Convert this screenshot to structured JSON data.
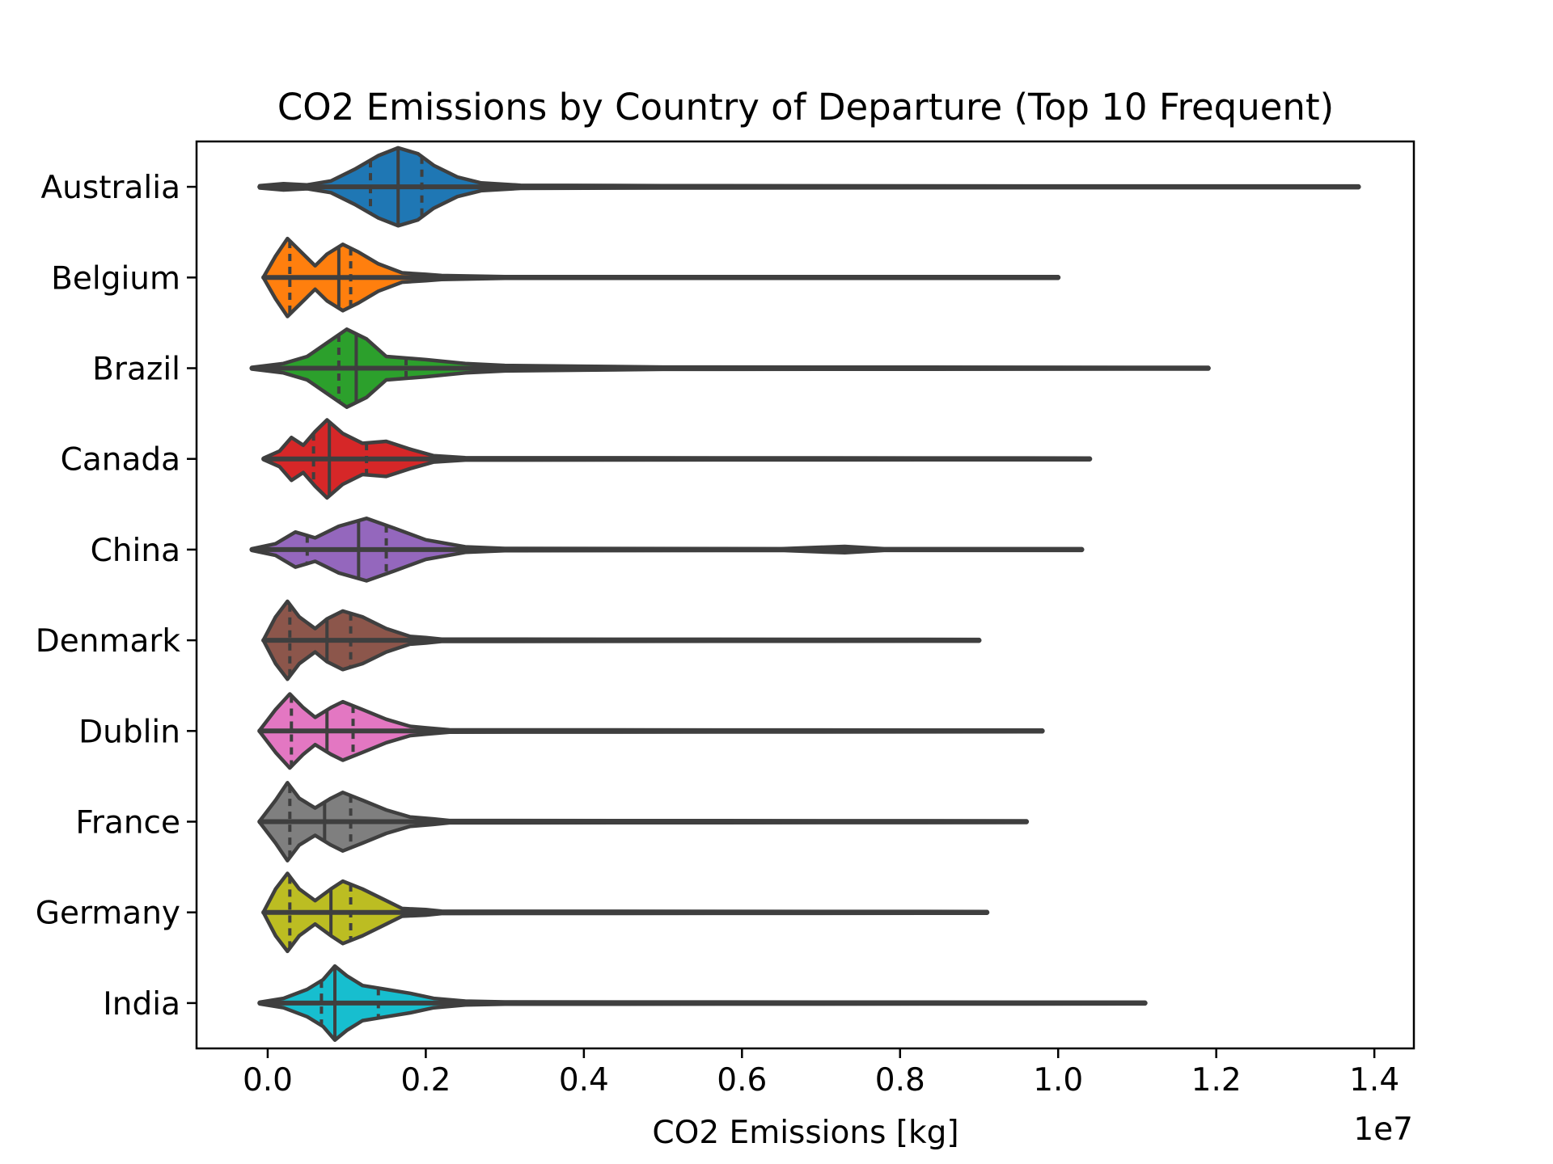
{
  "chart_data": {
    "type": "violin",
    "orientation": "horizontal",
    "title": "CO2 Emissions by Country of Departure (Top 10 Frequent)",
    "xlabel": "CO2 Emissions [kg]",
    "ylabel": "",
    "x_offset_label": "1e7",
    "x_scale_factor": 10000000,
    "xlim": [
      -0.09,
      1.45
    ],
    "x_ticks": [
      0.0,
      0.2,
      0.4,
      0.6,
      0.8,
      1.0,
      1.2,
      1.4
    ],
    "x_tick_labels": [
      "0.0",
      "0.2",
      "0.4",
      "0.6",
      "0.8",
      "1.0",
      "1.2",
      "1.4"
    ],
    "inner": "quartile",
    "categories": [
      "Australia",
      "Belgium",
      "Brazil",
      "Canada",
      "China",
      "Denmark",
      "Dublin",
      "France",
      "Germany",
      "India"
    ],
    "series": [
      {
        "name": "Australia",
        "color": "#1f77b4",
        "min": -0.01,
        "max": 1.38,
        "q1": 0.13,
        "median": 0.165,
        "q3": 0.195,
        "density": [
          [
            -0.01,
            0.03
          ],
          [
            0.02,
            0.08
          ],
          [
            0.05,
            0.05
          ],
          [
            0.08,
            0.15
          ],
          [
            0.11,
            0.45
          ],
          [
            0.14,
            0.8
          ],
          [
            0.165,
            1.0
          ],
          [
            0.19,
            0.85
          ],
          [
            0.21,
            0.55
          ],
          [
            0.24,
            0.25
          ],
          [
            0.27,
            0.1
          ],
          [
            0.32,
            0.04
          ],
          [
            0.5,
            0.03
          ],
          [
            1.0,
            0.02
          ],
          [
            1.38,
            0.02
          ]
        ]
      },
      {
        "name": "Belgium",
        "color": "#ff7f0e",
        "min": -0.005,
        "max": 1.0,
        "q1": 0.028,
        "median": 0.09,
        "q3": 0.105,
        "density": [
          [
            -0.005,
            0.02
          ],
          [
            0.01,
            0.55
          ],
          [
            0.025,
            1.0
          ],
          [
            0.04,
            0.7
          ],
          [
            0.06,
            0.3
          ],
          [
            0.075,
            0.6
          ],
          [
            0.095,
            0.85
          ],
          [
            0.115,
            0.65
          ],
          [
            0.14,
            0.35
          ],
          [
            0.17,
            0.12
          ],
          [
            0.2,
            0.08
          ],
          [
            0.22,
            0.05
          ],
          [
            0.3,
            0.02
          ],
          [
            1.0,
            0.02
          ]
        ]
      },
      {
        "name": "Brazil",
        "color": "#2ca02c",
        "min": -0.02,
        "max": 1.19,
        "q1": 0.09,
        "median": 0.112,
        "q3": 0.175,
        "density": [
          [
            -0.02,
            0.02
          ],
          [
            0.02,
            0.12
          ],
          [
            0.05,
            0.3
          ],
          [
            0.075,
            0.65
          ],
          [
            0.1,
            1.0
          ],
          [
            0.125,
            0.75
          ],
          [
            0.15,
            0.3
          ],
          [
            0.2,
            0.22
          ],
          [
            0.25,
            0.12
          ],
          [
            0.3,
            0.07
          ],
          [
            0.4,
            0.05
          ],
          [
            0.5,
            0.03
          ],
          [
            1.19,
            0.02
          ]
        ]
      },
      {
        "name": "Canada",
        "color": "#d62728",
        "min": -0.005,
        "max": 1.04,
        "q1": 0.058,
        "median": 0.078,
        "q3": 0.125,
        "density": [
          [
            -0.005,
            0.02
          ],
          [
            0.015,
            0.2
          ],
          [
            0.03,
            0.55
          ],
          [
            0.045,
            0.35
          ],
          [
            0.06,
            0.7
          ],
          [
            0.075,
            1.0
          ],
          [
            0.095,
            0.65
          ],
          [
            0.12,
            0.4
          ],
          [
            0.15,
            0.45
          ],
          [
            0.18,
            0.25
          ],
          [
            0.21,
            0.08
          ],
          [
            0.25,
            0.03
          ],
          [
            1.04,
            0.02
          ]
        ]
      },
      {
        "name": "China",
        "color": "#9467bd",
        "min": -0.02,
        "max": 1.03,
        "q1": 0.05,
        "median": 0.115,
        "q3": 0.15,
        "density": [
          [
            -0.02,
            0.02
          ],
          [
            0.01,
            0.15
          ],
          [
            0.035,
            0.45
          ],
          [
            0.06,
            0.3
          ],
          [
            0.09,
            0.6
          ],
          [
            0.125,
            0.8
          ],
          [
            0.16,
            0.55
          ],
          [
            0.2,
            0.25
          ],
          [
            0.25,
            0.07
          ],
          [
            0.3,
            0.03
          ],
          [
            0.65,
            0.02
          ],
          [
            0.7,
            0.06
          ],
          [
            0.73,
            0.08
          ],
          [
            0.78,
            0.02
          ],
          [
            1.03,
            0.02
          ]
        ]
      },
      {
        "name": "Denmark",
        "color": "#8c564b",
        "min": -0.005,
        "max": 0.9,
        "q1": 0.028,
        "median": 0.075,
        "q3": 0.105,
        "density": [
          [
            -0.005,
            0.02
          ],
          [
            0.01,
            0.6
          ],
          [
            0.025,
            1.0
          ],
          [
            0.04,
            0.6
          ],
          [
            0.06,
            0.3
          ],
          [
            0.075,
            0.55
          ],
          [
            0.095,
            0.75
          ],
          [
            0.12,
            0.6
          ],
          [
            0.15,
            0.3
          ],
          [
            0.18,
            0.1
          ],
          [
            0.2,
            0.07
          ],
          [
            0.22,
            0.03
          ],
          [
            0.9,
            0.02
          ]
        ]
      },
      {
        "name": "Dublin",
        "color": "#e377c2",
        "min": -0.01,
        "max": 0.98,
        "q1": 0.03,
        "median": 0.075,
        "q3": 0.108,
        "density": [
          [
            -0.01,
            0.02
          ],
          [
            0.01,
            0.55
          ],
          [
            0.028,
            0.95
          ],
          [
            0.045,
            0.6
          ],
          [
            0.06,
            0.35
          ],
          [
            0.08,
            0.6
          ],
          [
            0.095,
            0.75
          ],
          [
            0.12,
            0.55
          ],
          [
            0.15,
            0.3
          ],
          [
            0.18,
            0.12
          ],
          [
            0.2,
            0.08
          ],
          [
            0.23,
            0.03
          ],
          [
            0.98,
            0.02
          ]
        ]
      },
      {
        "name": "France",
        "color": "#7f7f7f",
        "min": -0.01,
        "max": 0.96,
        "q1": 0.028,
        "median": 0.072,
        "q3": 0.105,
        "density": [
          [
            -0.01,
            0.02
          ],
          [
            0.01,
            0.55
          ],
          [
            0.025,
            1.0
          ],
          [
            0.04,
            0.6
          ],
          [
            0.06,
            0.35
          ],
          [
            0.08,
            0.6
          ],
          [
            0.095,
            0.75
          ],
          [
            0.12,
            0.55
          ],
          [
            0.15,
            0.3
          ],
          [
            0.18,
            0.12
          ],
          [
            0.21,
            0.07
          ],
          [
            0.23,
            0.03
          ],
          [
            0.96,
            0.02
          ]
        ]
      },
      {
        "name": "Germany",
        "color": "#bcbd22",
        "min": -0.005,
        "max": 0.91,
        "q1": 0.028,
        "median": 0.08,
        "q3": 0.105,
        "density": [
          [
            -0.005,
            0.02
          ],
          [
            0.01,
            0.6
          ],
          [
            0.025,
            1.0
          ],
          [
            0.04,
            0.6
          ],
          [
            0.06,
            0.3
          ],
          [
            0.08,
            0.6
          ],
          [
            0.095,
            0.8
          ],
          [
            0.12,
            0.6
          ],
          [
            0.15,
            0.3
          ],
          [
            0.17,
            0.1
          ],
          [
            0.2,
            0.07
          ],
          [
            0.22,
            0.03
          ],
          [
            0.91,
            0.02
          ]
        ]
      },
      {
        "name": "India",
        "color": "#17becf",
        "min": -0.01,
        "max": 1.11,
        "q1": 0.068,
        "median": 0.085,
        "q3": 0.14,
        "density": [
          [
            -0.01,
            0.02
          ],
          [
            0.02,
            0.12
          ],
          [
            0.05,
            0.35
          ],
          [
            0.07,
            0.6
          ],
          [
            0.085,
            0.95
          ],
          [
            0.1,
            0.7
          ],
          [
            0.12,
            0.45
          ],
          [
            0.15,
            0.35
          ],
          [
            0.18,
            0.25
          ],
          [
            0.21,
            0.12
          ],
          [
            0.25,
            0.05
          ],
          [
            0.3,
            0.03
          ],
          [
            1.11,
            0.02
          ]
        ]
      }
    ]
  }
}
